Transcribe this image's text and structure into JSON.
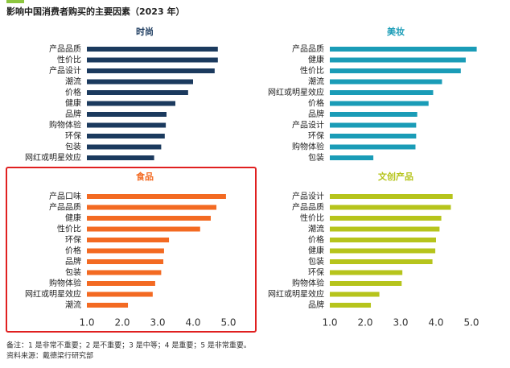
{
  "title": "影响中国消费者购买的主要因素（2023 年）",
  "notes": [
    "备注：1 是非常不重要；2 是不重要；3 是中等；4 是重要；5 是非常重要。",
    "资料来源：戴德梁行研究部"
  ],
  "chart_data": [
    {
      "type": "bar",
      "title": "时尚",
      "color": "#1b3a5e",
      "categories": [
        "产品品质",
        "性价比",
        "产品设计",
        "潮流",
        "价格",
        "健康",
        "品牌",
        "购物体验",
        "环保",
        "包装",
        "网红或明星效应"
      ],
      "values": [
        4.7,
        4.7,
        4.61,
        4.0,
        3.86,
        3.5,
        3.25,
        3.23,
        3.2,
        3.1,
        2.9
      ],
      "xlim": [
        1,
        5.2
      ]
    },
    {
      "type": "bar",
      "title": "美妆",
      "color": "#1a9cb7",
      "categories": [
        "产品品质",
        "健康",
        "性价比",
        "潮流",
        "网红或明星效应",
        "价格",
        "品牌",
        "产品设计",
        "环保",
        "购物体验",
        "包装"
      ],
      "values": [
        5.15,
        4.84,
        4.7,
        4.17,
        3.92,
        3.79,
        3.47,
        3.44,
        3.44,
        3.42,
        2.23
      ],
      "xlim": [
        1,
        5.2
      ]
    },
    {
      "type": "bar",
      "title": "食品",
      "color": "#f36a22",
      "categories": [
        "产品口味",
        "产品品质",
        "健康",
        "性价比",
        "环保",
        "价格",
        "品牌",
        "包装",
        "购物体验",
        "网红或明星效应",
        "潮流"
      ],
      "values": [
        4.93,
        4.66,
        4.5,
        4.2,
        3.32,
        3.18,
        3.16,
        3.1,
        2.93,
        2.86,
        2.16
      ],
      "xlim": [
        1,
        5.2
      ],
      "xticks": [
        {
          "value": 1,
          "label": "1.0"
        },
        {
          "value": 2,
          "label": "2.0"
        },
        {
          "value": 3,
          "label": "3.0"
        },
        {
          "value": 4,
          "label": "4.0"
        },
        {
          "value": 5,
          "label": "5.0"
        }
      ]
    },
    {
      "type": "bar",
      "title": "文创产品",
      "color": "#b6c41c",
      "categories": [
        "产品设计",
        "产品品质",
        "性价比",
        "潮流",
        "价格",
        "健康",
        "包装",
        "环保",
        "购物体验",
        "网红或明星效应",
        "品牌"
      ],
      "values": [
        4.47,
        4.42,
        4.15,
        4.1,
        4.0,
        3.98,
        3.9,
        3.05,
        3.03,
        2.4,
        2.16
      ],
      "xlim": [
        1,
        5.2
      ],
      "xticks": [
        {
          "value": 1,
          "label": "1.0"
        },
        {
          "value": 2,
          "label": "2.0"
        },
        {
          "value": 3,
          "label": "3.0"
        },
        {
          "value": 4,
          "label": "4.0"
        },
        {
          "value": 5,
          "label": "5.0"
        }
      ]
    }
  ]
}
